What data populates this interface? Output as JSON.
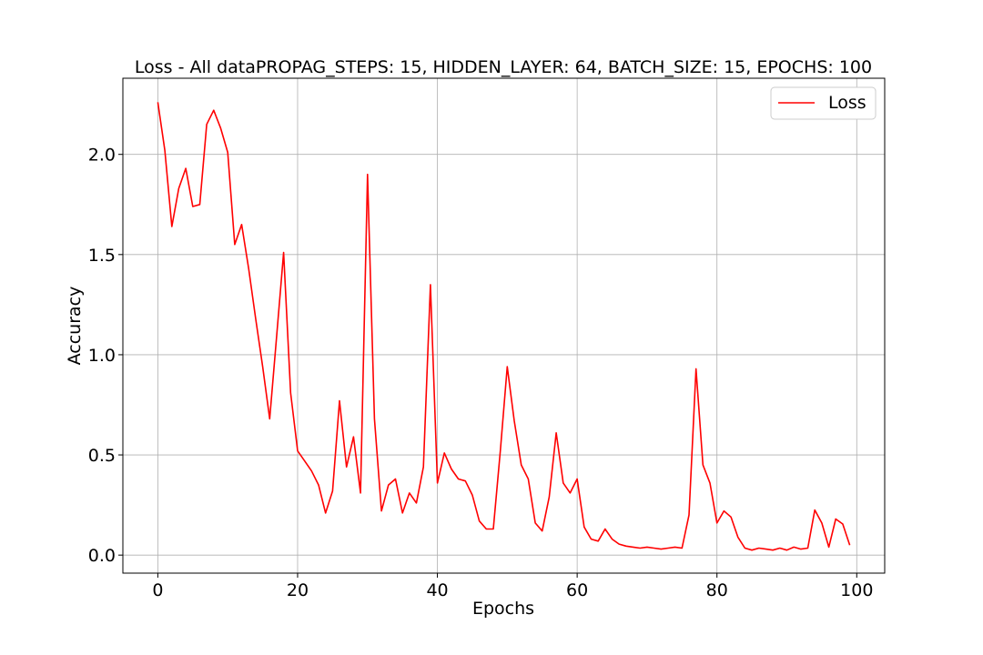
{
  "chart_data": {
    "type": "line",
    "title": "Loss - All dataPROPAG_STEPS: 15, HIDDEN_LAYER: 64, BATCH_SIZE: 15, EPOCHS: 100",
    "xlabel": "Epochs",
    "ylabel": "Accuracy",
    "xlim": [
      -5,
      104
    ],
    "ylim": [
      -0.09,
      2.38
    ],
    "xticks": [
      0,
      20,
      40,
      60,
      80,
      100
    ],
    "xtick_labels": [
      "0",
      "20",
      "40",
      "60",
      "80",
      "100"
    ],
    "yticks": [
      0.0,
      0.5,
      1.0,
      1.5,
      2.0
    ],
    "ytick_labels": [
      "0.0",
      "0.5",
      "1.0",
      "1.5",
      "2.0"
    ],
    "grid": true,
    "legend_position": "top-right",
    "series": [
      {
        "name": "Loss",
        "color": "#ff0000",
        "x": [
          0,
          1,
          2,
          3,
          4,
          5,
          6,
          7,
          8,
          9,
          10,
          11,
          12,
          13,
          14,
          15,
          16,
          17,
          18,
          19,
          20,
          21,
          22,
          23,
          24,
          25,
          26,
          27,
          28,
          29,
          30,
          31,
          32,
          33,
          34,
          35,
          36,
          37,
          38,
          39,
          40,
          41,
          42,
          43,
          44,
          45,
          46,
          47,
          48,
          49,
          50,
          51,
          52,
          53,
          54,
          55,
          56,
          57,
          58,
          59,
          60,
          61,
          62,
          63,
          64,
          65,
          66,
          67,
          68,
          69,
          70,
          71,
          72,
          73,
          74,
          75,
          76,
          77,
          78,
          79,
          80,
          81,
          82,
          83,
          84,
          85,
          86,
          87,
          88,
          89,
          90,
          91,
          92,
          93,
          94,
          95,
          96,
          97,
          98,
          99
        ],
        "values": [
          2.26,
          2.02,
          1.64,
          1.83,
          1.93,
          1.74,
          1.75,
          2.15,
          2.22,
          2.13,
          2.01,
          1.55,
          1.65,
          1.43,
          1.18,
          0.94,
          0.68,
          1.09,
          1.51,
          0.81,
          0.52,
          0.47,
          0.42,
          0.35,
          0.21,
          0.32,
          0.77,
          0.44,
          0.59,
          0.31,
          1.9,
          0.68,
          0.22,
          0.35,
          0.38,
          0.21,
          0.31,
          0.26,
          0.44,
          1.35,
          0.36,
          0.51,
          0.43,
          0.38,
          0.37,
          0.3,
          0.17,
          0.13,
          0.13,
          0.52,
          0.94,
          0.67,
          0.45,
          0.38,
          0.16,
          0.12,
          0.29,
          0.61,
          0.36,
          0.31,
          0.38,
          0.14,
          0.08,
          0.07,
          0.13,
          0.08,
          0.055,
          0.045,
          0.04,
          0.035,
          0.04,
          0.035,
          0.03,
          0.035,
          0.04,
          0.035,
          0.2,
          0.93,
          0.45,
          0.36,
          0.16,
          0.22,
          0.19,
          0.09,
          0.035,
          0.025,
          0.035,
          0.03,
          0.025,
          0.035,
          0.025,
          0.04,
          0.03,
          0.035,
          0.225,
          0.16,
          0.04,
          0.18,
          0.155,
          0.05
        ]
      }
    ]
  }
}
